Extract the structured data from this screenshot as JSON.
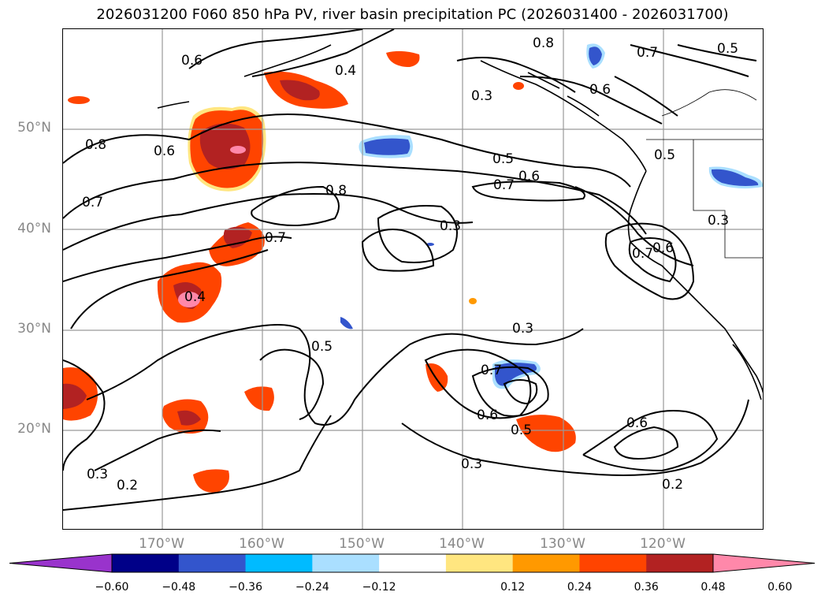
{
  "title": "2026031200 F060 850 hPa PV, river basin precipitation PC (2026031400 - 2026031700)",
  "map": {
    "latitude_labels": [
      "50°N",
      "40°N",
      "30°N",
      "20°N"
    ],
    "longitude_labels": [
      "170°W",
      "160°W",
      "150°W",
      "140°W",
      "130°W",
      "120°W"
    ],
    "contour_labels": [
      "0.6",
      "0.8",
      "0.5",
      "0.7",
      "0.6",
      "0.7",
      "0.8",
      "0.3",
      "0.5",
      "0.6",
      "0.7",
      "0.8",
      "0.6",
      "0.5",
      "0.7",
      "0.3",
      "0.4",
      "0.7",
      "0.5",
      "0.3",
      "0.7",
      "0.6",
      "0.5",
      "0.3",
      "0.6",
      "0.2",
      "0.3",
      "0.2",
      "0.3",
      "0.6",
      "0.4"
    ],
    "colors": {
      "grid": "#999999",
      "contour": "#000000",
      "coast": "#000000"
    }
  },
  "colorbar": {
    "ticks": [
      "−0.60",
      "−0.48",
      "−0.36",
      "−0.24",
      "−0.12",
      "0.12",
      "0.24",
      "0.36",
      "0.48",
      "0.60"
    ],
    "colors": [
      "#9933cc",
      "#000088",
      "#3355cc",
      "#00bbff",
      "#aadfff",
      "#ffffff",
      "#ffe680",
      "#ff9900",
      "#ff4400",
      "#b22222",
      "#ff88aa"
    ]
  }
}
